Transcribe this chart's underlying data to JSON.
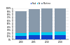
{
  "years": [
    "2000",
    "2005",
    "2010",
    "2018"
  ],
  "maritime": [
    700,
    750,
    800,
    820
  ],
  "air": [
    80,
    90,
    100,
    110
  ],
  "road": [
    120,
    130,
    140,
    150
  ],
  "colors": {
    "maritime": "#8899aa",
    "air": "#00ccee",
    "road": "#1144cc"
  },
  "legend_labels": [
    "Maritime",
    "Air",
    "Road"
  ],
  "ylim": [
    0,
    1000
  ],
  "ytick_labels": [
    "0%",
    "10%",
    "20%",
    "30%",
    "40%",
    "50%",
    "60%",
    "70%",
    "80%",
    "90%",
    "100%"
  ],
  "yticks": [
    0,
    100,
    200,
    300,
    400,
    500,
    600,
    700,
    800,
    900,
    1000
  ],
  "bar_width": 0.85,
  "background_color": "#ffffff",
  "grid_color": "#cccccc"
}
